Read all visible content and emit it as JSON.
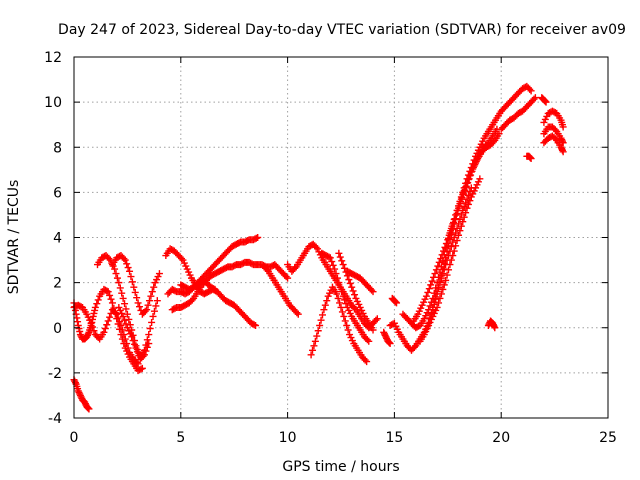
{
  "chart_data": {
    "type": "scatter",
    "title": "Day 247 of 2023, Sidereal Day-to-day VTEC variation (SDTVAR) for receiver av09",
    "xlabel": "GPS time / hours",
    "ylabel": "SDTVAR / TECUs",
    "xlim": [
      0,
      25
    ],
    "ylim": [
      -4,
      12
    ],
    "xticks": [
      0,
      5,
      10,
      15,
      20,
      25
    ],
    "yticks": [
      -4,
      -2,
      0,
      2,
      4,
      6,
      8,
      10,
      12
    ],
    "grid": true,
    "marker": "+",
    "color": "#ff0000",
    "series": [
      {
        "name": "seg-1",
        "x": [
          0.0,
          0.1,
          0.2,
          0.3,
          0.4,
          0.5,
          0.6,
          0.7
        ],
        "y": [
          -2.3,
          -2.5,
          -2.8,
          -3.0,
          -3.2,
          -3.3,
          -3.5,
          -3.6
        ]
      },
      {
        "name": "seg-2",
        "x": [
          0.0,
          0.1,
          0.2,
          0.3,
          0.4,
          0.5,
          0.6,
          0.7,
          0.8,
          0.9,
          1.0,
          1.2,
          1.4,
          1.6,
          1.8,
          2.0,
          2.2,
          2.4,
          2.6,
          2.8,
          3.0,
          3.2
        ],
        "y": [
          1.1,
          0.6,
          0.1,
          -0.3,
          -0.5,
          -0.5,
          -0.4,
          -0.2,
          0.1,
          0.5,
          0.9,
          1.4,
          1.7,
          1.6,
          1.1,
          0.4,
          -0.3,
          -0.9,
          -1.3,
          -1.6,
          -1.9,
          -1.8
        ]
      },
      {
        "name": "seg-3",
        "x": [
          0.0,
          0.2,
          0.4,
          0.6,
          0.8,
          1.0,
          1.2,
          1.4,
          1.6,
          1.8,
          2.0,
          2.2,
          2.4,
          2.6,
          2.8,
          3.0
        ],
        "y": [
          0.9,
          1.0,
          0.9,
          0.6,
          0.2,
          -0.3,
          -0.5,
          -0.2,
          0.3,
          0.8,
          0.6,
          0.1,
          -0.5,
          -1.1,
          -1.4,
          -1.6
        ]
      },
      {
        "name": "seg-4",
        "x": [
          1.1,
          1.3,
          1.5,
          1.7,
          1.9,
          2.1,
          2.3,
          2.5,
          2.7,
          2.9,
          3.1,
          3.3,
          3.5,
          3.7,
          3.9
        ],
        "y": [
          2.8,
          3.1,
          3.2,
          3.0,
          2.6,
          2.0,
          1.3,
          0.6,
          -0.1,
          -0.8,
          -1.3,
          -1.0,
          -0.3,
          0.5,
          1.2
        ]
      },
      {
        "name": "seg-5",
        "x": [
          1.8,
          2.0,
          2.2,
          2.4,
          2.6,
          2.8,
          3.0,
          3.2,
          3.4,
          3.6,
          3.8,
          4.0
        ],
        "y": [
          2.8,
          3.1,
          3.2,
          3.0,
          2.5,
          1.8,
          1.1,
          0.6,
          0.8,
          1.4,
          2.0,
          2.4
        ]
      },
      {
        "name": "seg-6",
        "x": [
          2.1,
          2.3,
          2.5,
          2.7,
          2.9,
          3.1,
          3.3,
          3.5
        ],
        "y": [
          0.9,
          0.5,
          0.0,
          -0.4,
          -0.9,
          -1.4,
          -1.2,
          -0.7
        ]
      },
      {
        "name": "seg-7",
        "x": [
          4.3,
          4.5,
          4.7,
          4.9,
          5.1,
          5.3,
          5.5,
          5.7,
          5.9,
          6.1,
          6.3,
          6.5,
          6.7,
          6.9,
          7.1,
          7.3,
          7.5,
          7.7,
          7.9,
          8.1,
          8.3,
          8.5
        ],
        "y": [
          3.2,
          3.5,
          3.4,
          3.2,
          3.0,
          2.6,
          2.2,
          1.9,
          1.6,
          1.5,
          1.6,
          1.7,
          1.6,
          1.4,
          1.2,
          1.1,
          1.0,
          0.8,
          0.6,
          0.4,
          0.2,
          0.1
        ]
      },
      {
        "name": "seg-8",
        "x": [
          4.4,
          4.6,
          4.8,
          5.0,
          5.2,
          5.4,
          5.6,
          5.8,
          6.0,
          6.2,
          6.4,
          6.6,
          6.8,
          7.0,
          7.2,
          7.4,
          7.6,
          7.8,
          8.0,
          8.2,
          8.4,
          8.6
        ],
        "y": [
          1.5,
          1.7,
          1.6,
          1.6,
          1.5,
          1.6,
          1.8,
          2.0,
          2.2,
          2.4,
          2.6,
          2.8,
          3.0,
          3.2,
          3.4,
          3.6,
          3.7,
          3.8,
          3.8,
          3.9,
          3.9,
          4.0
        ]
      },
      {
        "name": "seg-9",
        "x": [
          4.6,
          4.8,
          5.0,
          5.2,
          5.4,
          5.6,
          5.8,
          6.0,
          6.2,
          6.4,
          6.6,
          6.8,
          7.0,
          7.2,
          7.4,
          7.6,
          7.8,
          8.0,
          8.2,
          8.4,
          8.6,
          8.8,
          9.0,
          9.2,
          9.4,
          9.6,
          9.8,
          10.0
        ],
        "y": [
          0.8,
          0.9,
          0.9,
          1.0,
          1.1,
          1.3,
          1.6,
          1.9,
          2.1,
          2.3,
          2.4,
          2.5,
          2.6,
          2.7,
          2.7,
          2.8,
          2.8,
          2.9,
          2.9,
          2.8,
          2.8,
          2.8,
          2.7,
          2.7,
          2.8,
          2.6,
          2.4,
          2.2
        ]
      },
      {
        "name": "seg-10",
        "x": [
          5.0,
          5.2,
          5.4,
          5.6,
          5.8,
          6.0,
          6.2,
          6.4,
          6.6
        ],
        "y": [
          1.9,
          1.8,
          1.7,
          1.8,
          1.9,
          2.1,
          2.0,
          1.8,
          1.7
        ]
      },
      {
        "name": "seg-11",
        "x": [
          8.9,
          9.1,
          9.3,
          9.5,
          9.7,
          9.9,
          10.1,
          10.3,
          10.5
        ],
        "y": [
          2.7,
          2.5,
          2.2,
          1.9,
          1.6,
          1.3,
          1.0,
          0.8,
          0.6
        ]
      },
      {
        "name": "seg-12",
        "x": [
          10.0,
          10.2,
          10.4,
          10.6,
          10.8,
          11.0,
          11.2,
          11.4,
          11.6,
          11.8,
          12.0,
          12.2,
          12.4,
          12.6,
          12.8,
          13.0,
          13.2,
          13.4,
          13.6,
          13.8,
          14.0,
          14.2
        ],
        "y": [
          2.8,
          2.5,
          2.7,
          3.0,
          3.3,
          3.6,
          3.7,
          3.5,
          3.1,
          2.8,
          2.5,
          2.2,
          1.9,
          1.6,
          1.3,
          1.0,
          0.8,
          0.5,
          0.2,
          0.0,
          0.2,
          0.4
        ]
      },
      {
        "name": "seg-13",
        "x": [
          11.1,
          11.3,
          11.5,
          11.7,
          11.9,
          12.1,
          12.3,
          12.5,
          12.7,
          12.9,
          13.1,
          13.3,
          13.5,
          13.7
        ],
        "y": [
          -1.2,
          -0.6,
          0.1,
          0.8,
          1.4,
          1.8,
          1.5,
          0.9,
          0.3,
          -0.3,
          -0.7,
          -1.0,
          -1.3,
          -1.5
        ]
      },
      {
        "name": "seg-14",
        "x": [
          11.6,
          11.8,
          12.0,
          12.2,
          12.4,
          12.6,
          12.8,
          13.0,
          13.2,
          13.4,
          13.6,
          13.8
        ],
        "y": [
          3.3,
          3.2,
          3.1,
          2.6,
          2.0,
          1.4,
          0.9,
          0.5,
          0.2,
          -0.1,
          -0.4,
          -0.6
        ]
      },
      {
        "name": "seg-15",
        "x": [
          12.4,
          12.6,
          12.8,
          13.0,
          13.2,
          13.4,
          13.6,
          13.8,
          14.0
        ],
        "y": [
          3.3,
          2.8,
          2.3,
          1.8,
          1.3,
          0.9,
          0.5,
          0.2,
          -0.1
        ]
      },
      {
        "name": "seg-16",
        "x": [
          12.8,
          13.0,
          13.2,
          13.4,
          13.6,
          13.8,
          14.0
        ],
        "y": [
          2.5,
          2.4,
          2.3,
          2.2,
          2.0,
          1.8,
          1.6
        ]
      },
      {
        "name": "seg-17",
        "x": [
          14.5,
          14.6,
          14.7,
          14.8
        ],
        "y": [
          -0.2,
          -0.4,
          -0.6,
          -0.7
        ]
      },
      {
        "name": "seg-18",
        "x": [
          14.9,
          15.0,
          15.1
        ],
        "y": [
          1.3,
          1.2,
          1.1
        ]
      },
      {
        "name": "seg-19",
        "x": [
          14.8,
          15.0,
          15.2,
          15.4,
          15.6,
          15.8,
          16.0,
          16.2,
          16.4,
          16.6,
          16.8,
          17.0,
          17.2,
          17.4,
          17.6,
          17.8,
          18.0,
          18.2,
          18.4,
          18.6,
          18.8,
          19.0,
          19.2,
          19.4,
          19.6,
          19.8
        ],
        "y": [
          0.1,
          0.2,
          -0.2,
          -0.5,
          -0.8,
          -1.0,
          -0.8,
          -0.5,
          -0.2,
          0.2,
          0.8,
          1.5,
          2.3,
          3.1,
          3.9,
          4.6,
          5.3,
          5.9,
          6.4,
          6.9,
          7.3,
          7.7,
          8.0,
          8.2,
          8.5,
          8.8
        ]
      },
      {
        "name": "seg-20",
        "x": [
          15.4,
          15.6,
          15.8,
          16.0,
          16.2,
          16.4,
          16.6,
          16.8,
          17.0,
          17.2,
          17.4,
          17.6,
          17.8,
          18.0,
          18.2,
          18.4,
          18.6,
          18.8,
          19.0,
          19.2,
          19.4,
          19.6,
          19.8,
          20.0,
          20.2,
          20.4,
          20.6,
          20.8,
          21.0,
          21.2,
          21.4
        ],
        "y": [
          0.6,
          0.4,
          0.2,
          0.0,
          0.1,
          0.4,
          0.8,
          1.3,
          2.0,
          2.7,
          3.5,
          4.2,
          4.8,
          5.4,
          6.0,
          6.6,
          7.1,
          7.6,
          8.0,
          8.4,
          8.7,
          9.0,
          9.3,
          9.6,
          9.8,
          10.0,
          10.2,
          10.4,
          10.6,
          10.7,
          10.5
        ]
      },
      {
        "name": "seg-21",
        "x": [
          15.9,
          16.1,
          16.3,
          16.5,
          16.7,
          16.9,
          17.1,
          17.3,
          17.5,
          17.7,
          17.9,
          18.1,
          18.3,
          18.5,
          18.7,
          18.9,
          19.1,
          19.3,
          19.5,
          19.7,
          19.9
        ],
        "y": [
          0.3,
          0.6,
          1.0,
          1.4,
          1.9,
          2.4,
          2.9,
          3.4,
          3.9,
          4.5,
          5.0,
          5.6,
          6.1,
          6.6,
          7.1,
          7.5,
          7.8,
          8.0,
          8.1,
          8.3,
          8.6
        ]
      },
      {
        "name": "seg-22",
        "x": [
          16.2,
          16.4,
          16.6,
          16.8,
          17.0,
          17.2,
          17.4,
          17.6,
          17.8,
          18.0,
          18.2,
          18.4,
          18.6,
          18.8,
          19.0
        ],
        "y": [
          -0.6,
          -0.3,
          0.1,
          0.5,
          0.9,
          1.5,
          2.1,
          2.8,
          3.4,
          4.1,
          4.7,
          5.3,
          5.8,
          6.2,
          6.6
        ]
      },
      {
        "name": "seg-23",
        "x": [
          16.6,
          16.8,
          17.0,
          17.2,
          17.4,
          17.6,
          17.8,
          18.0,
          18.2,
          18.4,
          18.6
        ],
        "y": [
          0.2,
          0.9,
          1.6,
          2.2,
          2.8,
          3.4,
          4.0,
          4.6,
          5.2,
          5.7,
          6.2
        ]
      },
      {
        "name": "seg-24",
        "x": [
          19.4,
          19.5,
          19.6,
          19.7
        ],
        "y": [
          0.1,
          0.3,
          0.2,
          0.0
        ]
      },
      {
        "name": "seg-25",
        "x": [
          20.0,
          20.2,
          20.4,
          20.6,
          20.8,
          21.0,
          21.2,
          21.4,
          21.6
        ],
        "y": [
          8.8,
          9.0,
          9.2,
          9.3,
          9.5,
          9.6,
          9.8,
          10.0,
          10.2
        ]
      },
      {
        "name": "seg-26",
        "x": [
          21.2,
          21.3,
          21.4
        ],
        "y": [
          7.6,
          7.6,
          7.5
        ]
      },
      {
        "name": "seg-27",
        "x": [
          21.9,
          22.0,
          22.1
        ],
        "y": [
          10.2,
          10.1,
          10.0
        ]
      },
      {
        "name": "seg-28",
        "x": [
          22.0,
          22.2,
          22.4,
          22.6,
          22.8,
          22.9
        ],
        "y": [
          9.1,
          9.5,
          9.6,
          9.5,
          9.2,
          8.9
        ]
      },
      {
        "name": "seg-29",
        "x": [
          22.0,
          22.2,
          22.4,
          22.6,
          22.8,
          22.9
        ],
        "y": [
          8.6,
          8.9,
          8.9,
          8.7,
          8.4,
          8.2
        ]
      },
      {
        "name": "seg-30",
        "x": [
          22.0,
          22.2,
          22.4,
          22.6,
          22.8,
          22.9
        ],
        "y": [
          8.2,
          8.4,
          8.5,
          8.3,
          8.0,
          7.8
        ]
      }
    ]
  }
}
